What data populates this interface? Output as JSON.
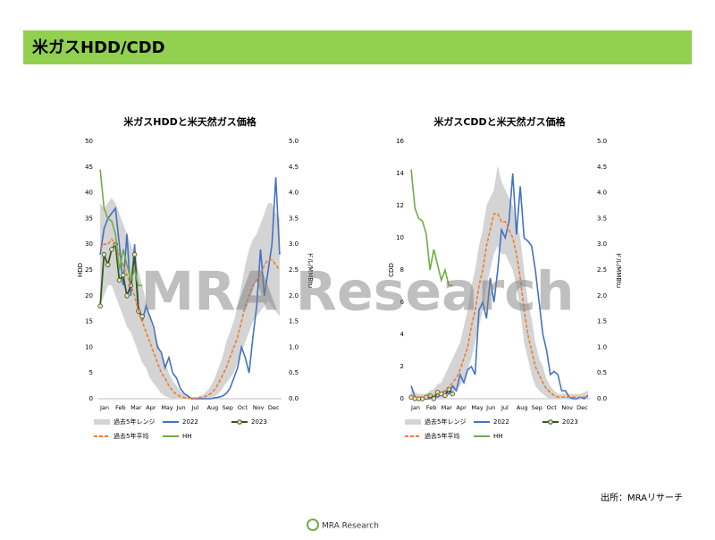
{
  "header": {
    "title": "米ガスHDD/CDD"
  },
  "watermark": "MRA Research",
  "source": "出所：MRAリサーチ",
  "logo": "MRA Research",
  "chart_data": [
    {
      "type": "line",
      "title": "米ガスHDDと米天然ガス価格",
      "ylabel": "HDD",
      "y2label": "ドル/MMBtu",
      "categories": [
        "Jan",
        null,
        null,
        null,
        "Feb",
        null,
        null,
        null,
        "Mar",
        null,
        null,
        null,
        "Apr",
        null,
        null,
        null,
        "May",
        null,
        null,
        null,
        "Jun",
        null,
        null,
        null,
        "Jul",
        null,
        null,
        null,
        "Aug",
        null,
        null,
        null,
        "Sep",
        null,
        null,
        null,
        "Oct",
        null,
        null,
        null,
        "Nov",
        null,
        null,
        null,
        "Dec",
        null,
        null,
        null
      ],
      "ylim": [
        0,
        50
      ],
      "yticks": [
        0,
        5,
        10,
        15,
        20,
        25,
        30,
        35,
        40,
        45,
        50
      ],
      "y2lim": [
        0,
        5
      ],
      "y2ticks": [
        {
          "value": 0,
          "label": "0.0"
        },
        {
          "value": 0.5,
          "label": "0.5"
        },
        {
          "value": 1,
          "label": "1.0"
        },
        {
          "value": 1.5,
          "label": "1.5"
        },
        {
          "value": 2,
          "label": "2.0"
        },
        {
          "value": 2.5,
          "label": "2.5"
        },
        {
          "value": 3,
          "label": "3.0"
        },
        {
          "value": 3.5,
          "label": "3.5"
        },
        {
          "value": 4,
          "label": "4.0"
        },
        {
          "value": 4.5,
          "label": "4.5"
        },
        {
          "value": 5,
          "label": "5.0"
        }
      ],
      "series": [
        {
          "name": "過去5年レンジ",
          "kind": "range",
          "color": "#d4d4d4",
          "values": [
            38,
            37,
            38,
            39,
            38,
            36,
            34,
            32,
            30,
            28,
            25,
            22,
            19,
            16,
            13,
            11,
            9,
            7,
            5,
            3.5,
            2.5,
            1.5,
            0.8,
            0.4,
            0.3,
            0.3,
            0.5,
            0.8,
            1.5,
            2.5,
            4,
            6,
            8,
            11,
            13,
            15,
            18,
            22,
            26,
            29,
            31,
            32,
            34,
            36,
            38,
            38,
            36,
            35
          ],
          "low": [
            18,
            20,
            22,
            22,
            20,
            18,
            16,
            14,
            13,
            11,
            9,
            7,
            6,
            4,
            3,
            2,
            1,
            0.5,
            0.2,
            0.1,
            0,
            0,
            0,
            0,
            0,
            0,
            0,
            0,
            0.1,
            0.2,
            0.5,
            1,
            2,
            3,
            4,
            5,
            7,
            9,
            11,
            13,
            15,
            16,
            17,
            18,
            19,
            18,
            17,
            16
          ]
        },
        {
          "name": "2022",
          "kind": "line",
          "color": "#4472c4",
          "values": [
            28,
            33,
            35,
            36,
            37,
            30,
            22,
            32,
            20,
            30,
            18,
            15,
            18,
            16,
            14,
            10,
            9,
            6,
            8,
            5,
            4,
            2,
            1,
            0.5,
            0,
            0,
            0,
            0,
            0,
            0,
            0.2,
            0.3,
            0.5,
            1,
            2,
            4,
            6,
            10,
            8,
            5,
            12,
            18,
            29,
            20,
            25,
            30,
            43,
            28
          ]
        },
        {
          "name": "2023",
          "kind": "marker-line",
          "color": "#375623",
          "marker": "#e6dfb8",
          "values": [
            18,
            28,
            26,
            29,
            30,
            23,
            24,
            20,
            22,
            28,
            17,
            16,
            null,
            null,
            null,
            null,
            null,
            null,
            null,
            null,
            null,
            null,
            null,
            null,
            null,
            null,
            null,
            null,
            null,
            null,
            null,
            null,
            null,
            null,
            null,
            null,
            null,
            null,
            null,
            null,
            null,
            null,
            null,
            null,
            null,
            null,
            null,
            null
          ]
        },
        {
          "name": "過去5年平均",
          "kind": "dashed",
          "color": "#ed7d31",
          "values": [
            29,
            30,
            30,
            31,
            30,
            28,
            26,
            24,
            22,
            20,
            17,
            15,
            13,
            11,
            9,
            7,
            5,
            4,
            2.5,
            1.5,
            0.8,
            0.4,
            0.2,
            0.1,
            0.1,
            0.1,
            0.2,
            0.3,
            0.6,
            1,
            1.8,
            3,
            4.5,
            6,
            8,
            10,
            12,
            15,
            18,
            20,
            22,
            23,
            24,
            26,
            27,
            27,
            26,
            25
          ]
        },
        {
          "name": "HH",
          "kind": "line",
          "axis": "y2",
          "color": "#70ad47",
          "values": [
            4.45,
            3.7,
            3.5,
            3.45,
            3.2,
            2.5,
            2.9,
            2.6,
            2.3,
            2.5,
            2.2,
            2.2,
            null,
            null,
            null,
            null,
            null,
            null,
            null,
            null,
            null,
            null,
            null,
            null,
            null,
            null,
            null,
            null,
            null,
            null,
            null,
            null,
            null,
            null,
            null,
            null,
            null,
            null,
            null,
            null,
            null,
            null,
            null,
            null,
            null,
            null,
            null,
            null
          ]
        }
      ]
    },
    {
      "type": "line",
      "title": "米ガスCDDと米天然ガス価格",
      "ylabel": "CDD",
      "y2label": "ドル/MMBtu",
      "categories": [
        "Jan",
        null,
        null,
        null,
        "Feb",
        null,
        null,
        null,
        "Mar",
        null,
        null,
        null,
        "Apr",
        null,
        null,
        null,
        "May",
        null,
        null,
        null,
        "Jun",
        null,
        null,
        null,
        "Jul",
        null,
        null,
        null,
        "Aug",
        null,
        null,
        null,
        "Sep",
        null,
        null,
        null,
        "Oct",
        null,
        null,
        null,
        "Nov",
        null,
        null,
        null,
        "Dec",
        null,
        null,
        null
      ],
      "ylim": [
        0,
        16
      ],
      "yticks": [
        0,
        2,
        4,
        6,
        8,
        10,
        12,
        14,
        16
      ],
      "y2lim": [
        0,
        5
      ],
      "y2ticks": [
        {
          "value": 0,
          "label": "0.0"
        },
        {
          "value": 0.5,
          "label": "0.5"
        },
        {
          "value": 1,
          "label": "1.0"
        },
        {
          "value": 1.5,
          "label": "1.5"
        },
        {
          "value": 2,
          "label": "2.0"
        },
        {
          "value": 2.5,
          "label": "2.5"
        },
        {
          "value": 3,
          "label": "3.0"
        },
        {
          "value": 3.5,
          "label": "3.5"
        },
        {
          "value": 4,
          "label": "4.0"
        },
        {
          "value": 4.5,
          "label": "4.5"
        },
        {
          "value": 5,
          "label": "5.0"
        }
      ],
      "series": [
        {
          "name": "過去5年レンジ",
          "kind": "range",
          "color": "#d4d4d4",
          "values": [
            0.8,
            0.4,
            0.3,
            0.3,
            0.3,
            0.5,
            0.6,
            0.9,
            1,
            1.5,
            2,
            2.5,
            3,
            3.5,
            4.5,
            5.5,
            7,
            8,
            9.5,
            10.5,
            12,
            12.5,
            13,
            14.5,
            13.5,
            13,
            12.5,
            12,
            11,
            10,
            8,
            6,
            5,
            3.5,
            2.5,
            2,
            1.2,
            0.8,
            0.5,
            0.3,
            0.3,
            0.3,
            0.3,
            0.3,
            0.3,
            0.3,
            0.4,
            0.5
          ],
          "low": [
            0,
            0,
            0,
            0,
            0,
            0,
            0,
            0,
            0,
            0.1,
            0.2,
            0.4,
            0.5,
            0.8,
            1.2,
            1.8,
            2.5,
            3.5,
            4.5,
            5.5,
            7,
            8,
            9,
            9.5,
            9,
            9,
            8.5,
            8,
            7,
            5.5,
            3.5,
            2.5,
            1.5,
            0.8,
            0.5,
            0.3,
            0.1,
            0,
            0,
            0,
            0,
            0,
            0,
            0,
            0,
            0,
            0,
            0
          ]
        },
        {
          "name": "2022",
          "kind": "line",
          "color": "#4472c4",
          "values": [
            0.8,
            0.1,
            0,
            0,
            0,
            0,
            0.2,
            0.1,
            0.3,
            0.5,
            0.3,
            0.8,
            0.5,
            1.5,
            1,
            1.8,
            2,
            1.5,
            5.5,
            6,
            5,
            7.5,
            6,
            8,
            10.5,
            10,
            11,
            14,
            10.2,
            13.2,
            10,
            9.8,
            9.5,
            8,
            6,
            4,
            3,
            1.5,
            1.7,
            1.5,
            0.5,
            0.5,
            0.1,
            0,
            0,
            0.1,
            0,
            0.2
          ]
        },
        {
          "name": "2023",
          "kind": "marker-line",
          "color": "#375623",
          "marker": "#e6dfb8",
          "values": [
            0.1,
            0,
            0,
            0,
            0.1,
            0.2,
            0,
            0.4,
            0.3,
            0.2,
            0.6,
            0.3,
            null,
            null,
            null,
            null,
            null,
            null,
            null,
            null,
            null,
            null,
            null,
            null,
            null,
            null,
            null,
            null,
            null,
            null,
            null,
            null,
            null,
            null,
            null,
            null,
            null,
            null,
            null,
            null,
            null,
            null,
            null,
            null,
            null,
            null,
            null,
            null
          ]
        },
        {
          "name": "過去5年平均",
          "kind": "dashed",
          "color": "#ed7d31",
          "values": [
            0.2,
            0.1,
            0.1,
            0.1,
            0.1,
            0.2,
            0.2,
            0.3,
            0.4,
            0.5,
            0.7,
            1,
            1.3,
            1.8,
            2.5,
            3.2,
            4.5,
            5.5,
            7,
            8,
            9.5,
            10.5,
            11.5,
            11.5,
            11,
            11,
            10.5,
            10,
            9,
            7.5,
            5.5,
            4,
            3,
            2,
            1.5,
            1,
            0.6,
            0.4,
            0.2,
            0.1,
            0.1,
            0.1,
            0.1,
            0.1,
            0.1,
            0.1,
            0.1,
            0.1
          ]
        },
        {
          "name": "HH",
          "kind": "line",
          "axis": "y2",
          "color": "#70ad47",
          "values": [
            4.45,
            3.7,
            3.5,
            3.45,
            3.2,
            2.5,
            2.9,
            2.6,
            2.3,
            2.5,
            2.2,
            2.2,
            null,
            null,
            null,
            null,
            null,
            null,
            null,
            null,
            null,
            null,
            null,
            null,
            null,
            null,
            null,
            null,
            null,
            null,
            null,
            null,
            null,
            null,
            null,
            null,
            null,
            null,
            null,
            null,
            null,
            null,
            null,
            null,
            null,
            null,
            null,
            null
          ]
        }
      ]
    }
  ]
}
